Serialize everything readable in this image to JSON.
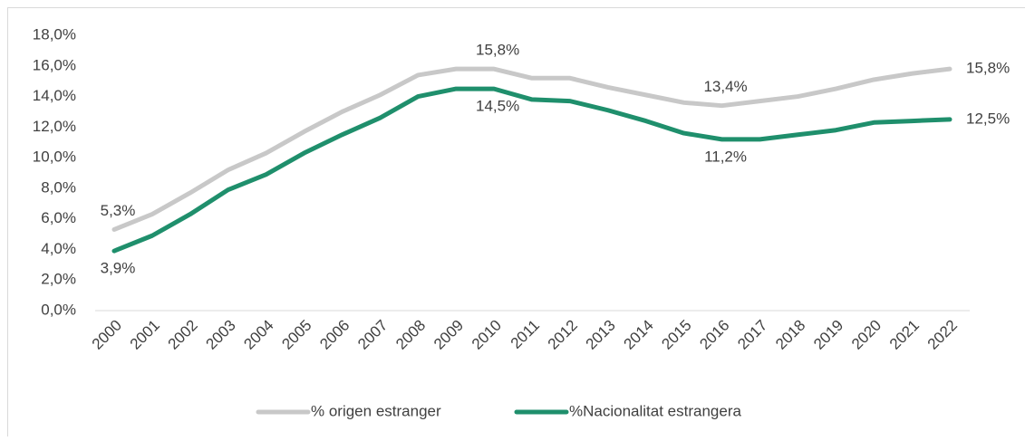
{
  "chart_data": {
    "type": "line",
    "categories": [
      "2000",
      "2001",
      "2002",
      "2003",
      "2004",
      "2005",
      "2006",
      "2007",
      "2008",
      "2009",
      "2010",
      "2011",
      "2012",
      "2013",
      "2014",
      "2015",
      "2016",
      "2017",
      "2018",
      "2019",
      "2020",
      "2021",
      "2022"
    ],
    "series": [
      {
        "name": "% origen estranger",
        "color": "#c8c8c8",
        "values": [
          5.3,
          6.3,
          7.7,
          9.2,
          10.3,
          11.7,
          13.0,
          14.1,
          15.4,
          15.8,
          15.8,
          15.2,
          15.2,
          14.6,
          14.1,
          13.6,
          13.4,
          13.7,
          14.0,
          14.5,
          15.1,
          15.5,
          15.8
        ],
        "value_labels": [
          "5,3%",
          null,
          null,
          null,
          null,
          null,
          null,
          null,
          null,
          null,
          "15,8%",
          null,
          null,
          null,
          null,
          null,
          "13,4%",
          null,
          null,
          null,
          null,
          null,
          "15,8%"
        ]
      },
      {
        "name": "%Nacionalitat estrangera",
        "color": "#1f8f6c",
        "values": [
          3.9,
          4.9,
          6.3,
          7.9,
          8.9,
          10.3,
          11.5,
          12.6,
          14.0,
          14.5,
          14.5,
          13.8,
          13.7,
          13.1,
          12.4,
          11.6,
          11.2,
          11.2,
          11.5,
          11.8,
          12.3,
          12.4,
          12.5
        ],
        "value_labels": [
          "3,9%",
          null,
          null,
          null,
          null,
          null,
          null,
          null,
          null,
          null,
          "14,5%",
          null,
          null,
          null,
          null,
          null,
          "11,2%",
          null,
          null,
          null,
          null,
          null,
          "12,5%"
        ]
      }
    ],
    "ylim": [
      0,
      18
    ],
    "yticks": [
      {
        "value": 0,
        "label": "0,0%"
      },
      {
        "value": 2,
        "label": "2,0%"
      },
      {
        "value": 4,
        "label": "4,0%"
      },
      {
        "value": 6,
        "label": "6,0%"
      },
      {
        "value": 8,
        "label": "8,0%"
      },
      {
        "value": 10,
        "label": "10,0%"
      },
      {
        "value": 12,
        "label": "12,0%"
      },
      {
        "value": 14,
        "label": "14,0%"
      },
      {
        "value": 16,
        "label": "16,0%"
      },
      {
        "value": 18,
        "label": "18,0%"
      }
    ],
    "grid": false,
    "legend": "bottom"
  }
}
